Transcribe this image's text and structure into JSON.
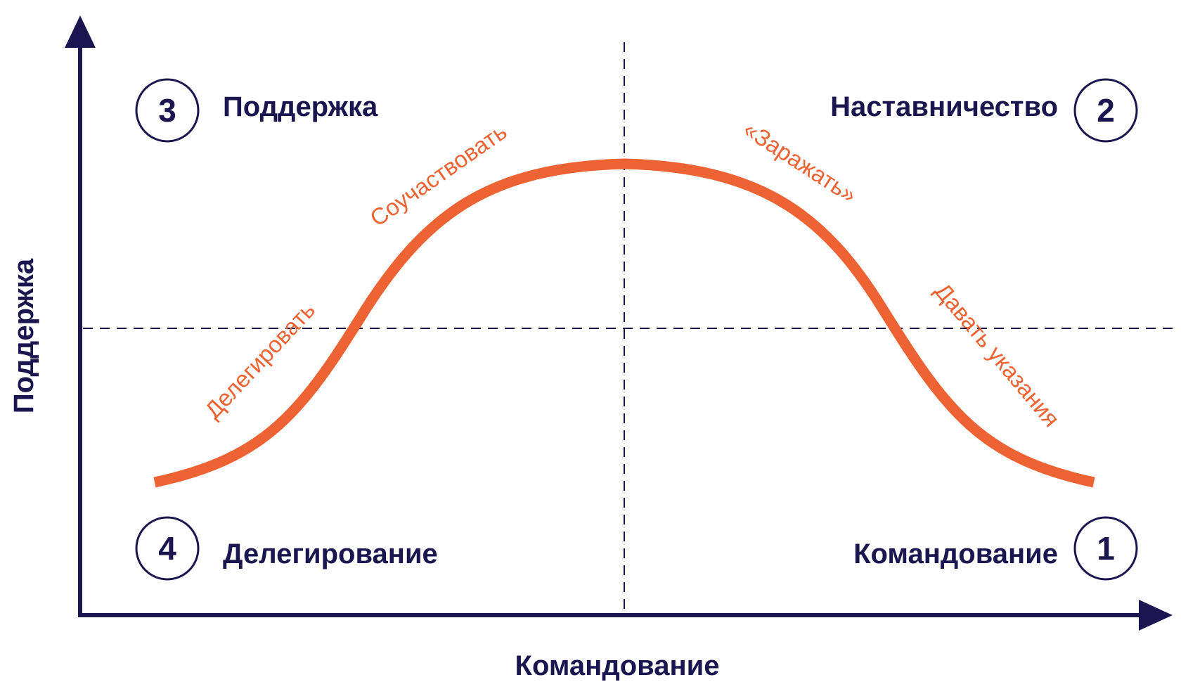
{
  "colors": {
    "navy": "#1b1550",
    "accent": "#ee6333",
    "background": "#ffffff"
  },
  "axes": {
    "x_label": "Командование",
    "y_label": "Поддержка"
  },
  "quadrants": {
    "q1": {
      "number": "1",
      "label": "Командование"
    },
    "q2": {
      "number": "2",
      "label": "Наставничество"
    },
    "q3": {
      "number": "3",
      "label": "Поддержка"
    },
    "q4": {
      "number": "4",
      "label": "Делегирование"
    }
  },
  "curve_labels": {
    "delegate": "Делегировать",
    "empathize": "Соучаствовать",
    "inspire": "«Заражать»",
    "direct": "Давать указания"
  }
}
